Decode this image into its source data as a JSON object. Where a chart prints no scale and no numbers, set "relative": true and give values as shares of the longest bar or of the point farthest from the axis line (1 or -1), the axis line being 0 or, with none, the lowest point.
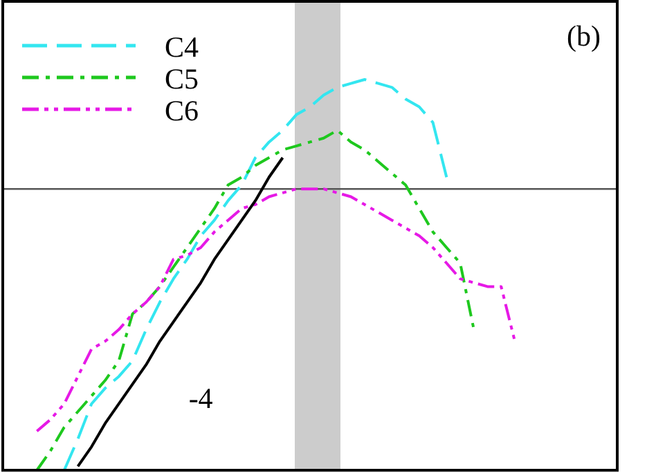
{
  "chart_data": {
    "type": "line",
    "relative": true,
    "categories": [
      null,
      null,
      null,
      null,
      null,
      null,
      null,
      null,
      null,
      null,
      null,
      null,
      null,
      null,
      null,
      null,
      null,
      null,
      null,
      null,
      null,
      null,
      null,
      null,
      null,
      null,
      null,
      null,
      null,
      null,
      null,
      null,
      null,
      null,
      null,
      null,
      null,
      null,
      null,
      null,
      null,
      null,
      null,
      null,
      null
    ],
    "series": [
      {
        "name": "C4",
        "color": "#33e6f0",
        "line_style": "dashed",
        "values": [
          null,
          null,
          null,
          null,
          0,
          0.08,
          0.17,
          0.21,
          0.24,
          0.28,
          0.36,
          0.43,
          0.49,
          0.54,
          0.6,
          0.64,
          0.69,
          0.73,
          0.8,
          0.84,
          0.87,
          0.91,
          0.93,
          0.96,
          0.98,
          0.99,
          1,
          0.99,
          0.98,
          0.95,
          0.93,
          0.89,
          0.75,
          null,
          null,
          null,
          null,
          null,
          null,
          null,
          null,
          null,
          null,
          null,
          null
        ]
      },
      {
        "name": "C5",
        "color": "#1ec81e",
        "line_style": "dashdot",
        "values": [
          null,
          null,
          0,
          0.05,
          0.11,
          0.15,
          0.19,
          0.23,
          0.28,
          0.4,
          0.43,
          0.47,
          0.52,
          0.57,
          0.62,
          0.67,
          0.73,
          0.75,
          0.78,
          0.8,
          0.82,
          0.83,
          0.84,
          0.85,
          0.87,
          0.84,
          0.82,
          0.79,
          0.76,
          0.73,
          0.67,
          0.61,
          0.57,
          0.53,
          0.36,
          null,
          null,
          null,
          null,
          null,
          null,
          null,
          null,
          null,
          null
        ]
      },
      {
        "name": "C6",
        "color": "#e619e6",
        "line_style": "dashdotdot",
        "values": [
          null,
          null,
          0.1,
          0.13,
          0.17,
          0.24,
          0.31,
          0.33,
          0.36,
          0.4,
          0.43,
          0.47,
          0.54,
          0.55,
          0.57,
          0.61,
          0.64,
          0.67,
          0.68,
          0.7,
          0.71,
          0.72,
          0.72,
          0.72,
          0.71,
          0.7,
          0.68,
          0.66,
          0.64,
          0.62,
          0.6,
          0.57,
          0.53,
          0.49,
          0.48,
          0.47,
          0.47,
          0.33,
          null,
          null,
          null,
          null,
          null,
          null,
          null
        ]
      },
      {
        "type": "line",
        "color": "#000000",
        "line_style": "solid",
        "values": [
          null,
          null,
          null,
          null,
          null,
          0.01,
          0.06,
          0.12,
          0.17,
          0.22,
          0.27,
          0.33,
          0.38,
          0.43,
          0.48,
          0.54,
          0.59,
          0.64,
          0.69,
          0.75,
          0.8,
          null,
          null,
          null,
          null,
          null,
          null,
          null,
          null,
          null,
          null,
          null,
          null,
          null,
          null,
          null,
          null,
          null,
          null,
          null,
          null,
          null,
          null,
          null,
          null
        ]
      }
    ],
    "ref_lines": [
      {
        "axis": "y",
        "value": 0.72,
        "color": "#555555"
      }
    ],
    "annotations": [
      "(b)",
      "-4"
    ],
    "legend": "top left"
  }
}
